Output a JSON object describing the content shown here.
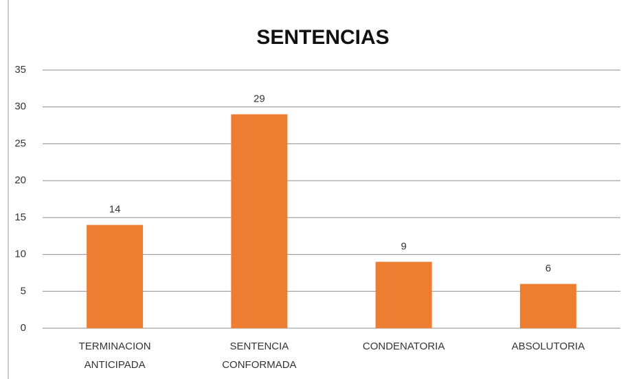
{
  "chart_data": {
    "type": "bar",
    "title": "SENTENCIAS",
    "categories": [
      "TERMINACION ANTICIPADA",
      "SENTENCIA CONFORMADA",
      "CONDENATORIA",
      "ABSOLUTORIA"
    ],
    "values": [
      14,
      29,
      9,
      6
    ],
    "color": "#ed7d31",
    "ylim": [
      0,
      35
    ],
    "yticks": [
      0,
      5,
      10,
      15,
      20,
      25,
      30,
      35
    ],
    "grid": true
  }
}
